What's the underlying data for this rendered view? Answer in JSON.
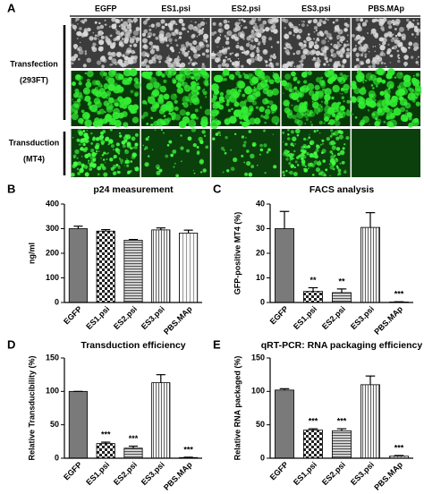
{
  "panel_a": {
    "label": "A",
    "columns": [
      "EGFP",
      "ES1.psi",
      "ES2.psi",
      "ES3.psi",
      "PBS.MAp"
    ],
    "groups": [
      {
        "title": "Transfection",
        "subtitle": "(293FT)"
      },
      {
        "title": "Transduction",
        "subtitle": "(MT4)"
      }
    ]
  },
  "chart_data": [
    {
      "type": "bar",
      "panel": "B",
      "title": "p24 measurement",
      "y_label": "ng/ml",
      "categories": [
        "EGFP",
        "ES1.psi",
        "ES2.psi",
        "ES3.psi",
        "PBS.MAp"
      ],
      "values": [
        300,
        290,
        253,
        295,
        282
      ],
      "errors": [
        10,
        6,
        3,
        8,
        12
      ],
      "annotations": [
        null,
        null,
        null,
        null,
        null
      ],
      "fills": [
        "solid",
        "checker",
        "hlines",
        "vlines",
        "vlines-light"
      ],
      "color": "#7a7a7a",
      "ylim": [
        0,
        400
      ],
      "yticks": [
        0,
        100,
        200,
        300,
        400
      ],
      "grid": false
    },
    {
      "type": "bar",
      "panel": "C",
      "title": "FACS analysis",
      "y_label": "GFP-positive MT4 (%)",
      "categories": [
        "EGFP",
        "ES1.psi",
        "ES2.psi",
        "ES3.psi",
        "PBS.MAp"
      ],
      "values": [
        30,
        4.5,
        4,
        30.5,
        0.2
      ],
      "errors": [
        7,
        1.5,
        1.5,
        6,
        0.1
      ],
      "annotations": [
        null,
        "**",
        "**",
        null,
        "***"
      ],
      "fills": [
        "solid",
        "checker",
        "hlines",
        "vlines",
        "vlines-light"
      ],
      "color": "#7a7a7a",
      "ylim": [
        0,
        40
      ],
      "yticks": [
        0,
        10,
        20,
        30,
        40
      ],
      "grid": false
    },
    {
      "type": "bar",
      "panel": "D",
      "title": "Transduction efficiency",
      "y_label": "Relative Transducibility (%)",
      "categories": [
        "EGFP",
        "ES1.psi",
        "ES2.psi",
        "ES3.psi",
        "PBS.MAp"
      ],
      "values": [
        100,
        22,
        15,
        113,
        1
      ],
      "errors": [
        0,
        2,
        3,
        12,
        0.5
      ],
      "annotations": [
        null,
        "***",
        "***",
        null,
        "***"
      ],
      "fills": [
        "solid",
        "checker",
        "hlines",
        "vlines",
        "vlines-light"
      ],
      "color": "#7a7a7a",
      "ylim": [
        0,
        150
      ],
      "yticks": [
        0,
        50,
        100,
        150
      ],
      "grid": false
    },
    {
      "type": "bar",
      "panel": "E",
      "title": "qRT-PCR: RNA packaging efficiency",
      "y_label": "Relative RNA packaged (%)",
      "categories": [
        "EGFP",
        "ES1.psi",
        "ES2.psi",
        "ES3.psi",
        "PBS.MAp"
      ],
      "values": [
        102,
        42,
        41,
        110,
        3
      ],
      "errors": [
        2,
        2,
        3,
        13,
        1
      ],
      "annotations": [
        null,
        "***",
        "***",
        null,
        "***"
      ],
      "fills": [
        "solid",
        "checker",
        "hlines",
        "vlines",
        "vlines-light"
      ],
      "color": "#7a7a7a",
      "ylim": [
        0,
        150
      ],
      "yticks": [
        0,
        50,
        100,
        150
      ],
      "grid": false
    }
  ]
}
